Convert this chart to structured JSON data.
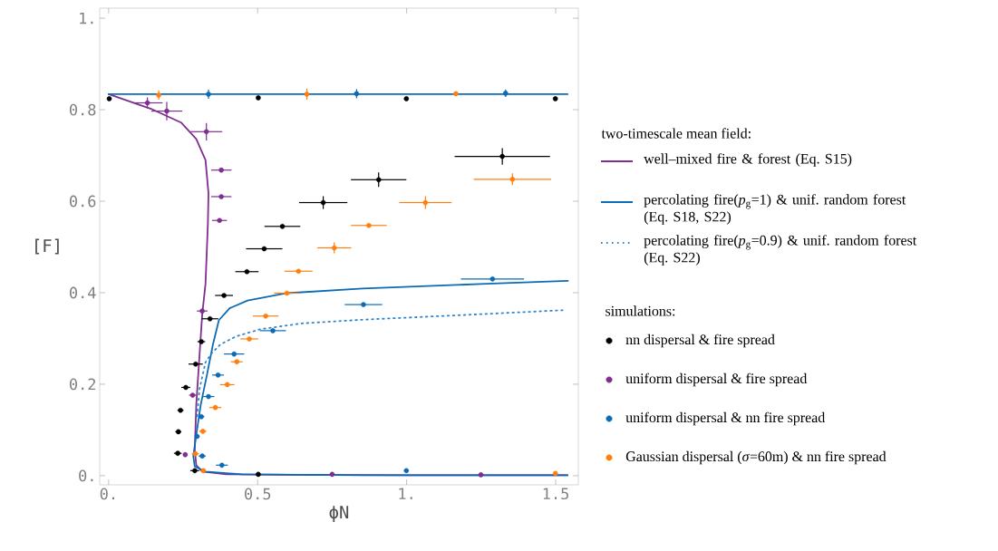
{
  "chart_data": {
    "type": "scatter",
    "xlabel": "ϕN",
    "ylabel": "[F]",
    "xlim": [
      -0.03,
      1.576
    ],
    "ylim": [
      -0.02,
      1.022
    ],
    "xticks": [
      {
        "value": 0,
        "label": "0."
      },
      0.5,
      {
        "value": 1,
        "label": "1."
      },
      1.5
    ],
    "yticks": [
      {
        "value": 0,
        "label": "0."
      },
      0.2,
      0.4,
      0.6,
      0.8,
      {
        "value": 1,
        "label": "1."
      }
    ],
    "legend": "right",
    "marker": "circle",
    "annotations": [
      "two-timescale mean field:",
      "simulations:"
    ],
    "series": [
      {
        "name": "well–mixed fire & forest  (Eq. S15)",
        "type": "line",
        "line_style": "solid",
        "marker": "none",
        "color": "#7d2e8f",
        "x": [
          0,
          0.142,
          0.243,
          0.294,
          0.325,
          0.335,
          0.333,
          0.325,
          0.314,
          0.304,
          0.294,
          0.289,
          0.294,
          0.314,
          0.395,
          0.6,
          1.0,
          1.54
        ],
        "values": [
          0.834,
          0.802,
          0.772,
          0.736,
          0.69,
          0.617,
          0.551,
          0.419,
          0.353,
          0.254,
          0.155,
          0.056,
          0.023,
          0.009,
          0.003,
          0.002,
          0.001,
          0.001
        ]
      },
      {
        "name": "percolating fire(*p*$_{g}$=1) & unif. random forest (Eq. S18, S22)",
        "type": "line",
        "line_style": "solid",
        "marker": "none",
        "color": "#0b6bb5",
        "x": [
          0,
          1.54,
          null,
          1.54,
          0.852,
          0.446,
          0.325,
          0.289,
          0.284,
          0.294,
          0.309,
          0.33,
          0.35,
          0.37,
          0.406,
          0.466,
          0.598,
          0.852,
          1.247,
          1.541
        ],
        "values": [
          0.834,
          0.834,
          null,
          0.001,
          0.001,
          0.003,
          0.009,
          0.02,
          0.043,
          0.089,
          0.155,
          0.221,
          0.287,
          0.34,
          0.366,
          0.383,
          0.399,
          0.409,
          0.419,
          0.426
        ]
      },
      {
        "name": "percolating fire(*p*$_{g}$=0.9) & unif. random forest (Eq. S22)",
        "type": "line",
        "line_style": "dotted",
        "marker": "none",
        "color": "#2f86cc",
        "x": [
          0.297,
          0.305,
          0.325,
          0.345,
          0.375,
          0.426,
          0.507,
          0.649,
          0.852,
          1.247,
          1.531
        ],
        "values": [
          0.13,
          0.19,
          0.248,
          0.267,
          0.287,
          0.304,
          0.32,
          0.333,
          0.341,
          0.353,
          0.362
        ]
      },
      {
        "name": "nn dispersal & fire spread",
        "color": "#000000",
        "x": [
          0.002,
          0.502,
          0.999,
          1.499,
          0.232,
          0.234,
          0.241,
          0.259,
          0.292,
          0.311,
          0.34,
          0.387,
          0.464,
          0.522,
          0.583,
          0.72,
          0.906,
          1.321,
          0.289,
          0.502
        ],
        "values": [
          0.824,
          0.826,
          0.824,
          0.824,
          0.049,
          0.096,
          0.143,
          0.193,
          0.244,
          0.293,
          0.343,
          0.394,
          0.446,
          0.496,
          0.545,
          0.597,
          0.647,
          0.698,
          0.011,
          0.003
        ],
        "xerrors": [
          null,
          null,
          null,
          null,
          0.013,
          0.01,
          0.01,
          0.015,
          0.024,
          0.013,
          0.028,
          0.03,
          0.039,
          0.061,
          0.06,
          0.081,
          0.093,
          0.16,
          0.015,
          null
        ],
        "errors": [
          null,
          null,
          null,
          null,
          null,
          null,
          null,
          null,
          null,
          null,
          null,
          null,
          null,
          null,
          null,
          0.014,
          0.016,
          0.018,
          null,
          null
        ]
      },
      {
        "name": "uniform dispersal & fire spread",
        "color": "#7d2e8f",
        "x": [
          0.13,
          0.195,
          0.328,
          0.378,
          0.378,
          0.372,
          0.314,
          0.282,
          0.257,
          0.75,
          1.249
        ],
        "values": [
          0.815,
          0.797,
          0.752,
          0.668,
          0.61,
          0.558,
          0.36,
          0.176,
          0.046,
          0.003,
          0.002
        ],
        "xerrors": [
          0.051,
          0.052,
          0.053,
          0.034,
          0.034,
          0.025,
          0.018,
          0.012,
          null,
          null,
          null
        ],
        "errors": [
          0.012,
          0.02,
          0.019,
          null,
          null,
          null,
          null,
          null,
          null,
          null,
          null
        ]
      },
      {
        "name": "uniform dispersal & nn fire spread",
        "color": "#0b6bb5",
        "x": [
          0.335,
          0.832,
          1.332,
          0.551,
          0.421,
          0.367,
          0.335,
          0.311,
          0.297,
          0.314,
          0.38,
          0.855,
          1.288,
          0.999
        ],
        "values": [
          0.834,
          0.835,
          0.836,
          0.317,
          0.266,
          0.22,
          0.173,
          0.129,
          0.086,
          0.043,
          0.023,
          0.374,
          0.43,
          0.011
        ],
        "xerrors": [
          null,
          null,
          null,
          0.044,
          0.034,
          0.02,
          0.02,
          0.01,
          null,
          0.012,
          0.02,
          0.063,
          0.106,
          null
        ],
        "errors": [
          0.01,
          0.01,
          0.008,
          null,
          null,
          null,
          null,
          null,
          null,
          null,
          null,
          null,
          null,
          null
        ]
      },
      {
        "name": "Gaussian dispersal (*σ*=60m) & nn fire spread",
        "color": "#ff7f0e",
        "x": [
          0.168,
          0.665,
          1.165,
          1.355,
          1.063,
          0.873,
          0.757,
          0.637,
          0.598,
          0.527,
          0.472,
          0.43,
          0.398,
          0.358,
          0.316,
          0.291,
          0.318,
          1.499
        ],
        "values": [
          0.832,
          0.834,
          0.835,
          0.648,
          0.597,
          0.547,
          0.498,
          0.447,
          0.399,
          0.349,
          0.299,
          0.249,
          0.199,
          0.149,
          0.097,
          0.048,
          0.011,
          0.005
        ],
        "xerrors": [
          null,
          null,
          null,
          0.13,
          0.088,
          0.06,
          0.057,
          0.047,
          0.043,
          0.043,
          0.03,
          0.02,
          0.024,
          0.02,
          0.012,
          0.012,
          null,
          null
        ],
        "errors": [
          0.01,
          0.012,
          null,
          0.013,
          0.014,
          null,
          0.012,
          null,
          null,
          null,
          null,
          null,
          null,
          null,
          null,
          null,
          null,
          null
        ]
      }
    ]
  }
}
